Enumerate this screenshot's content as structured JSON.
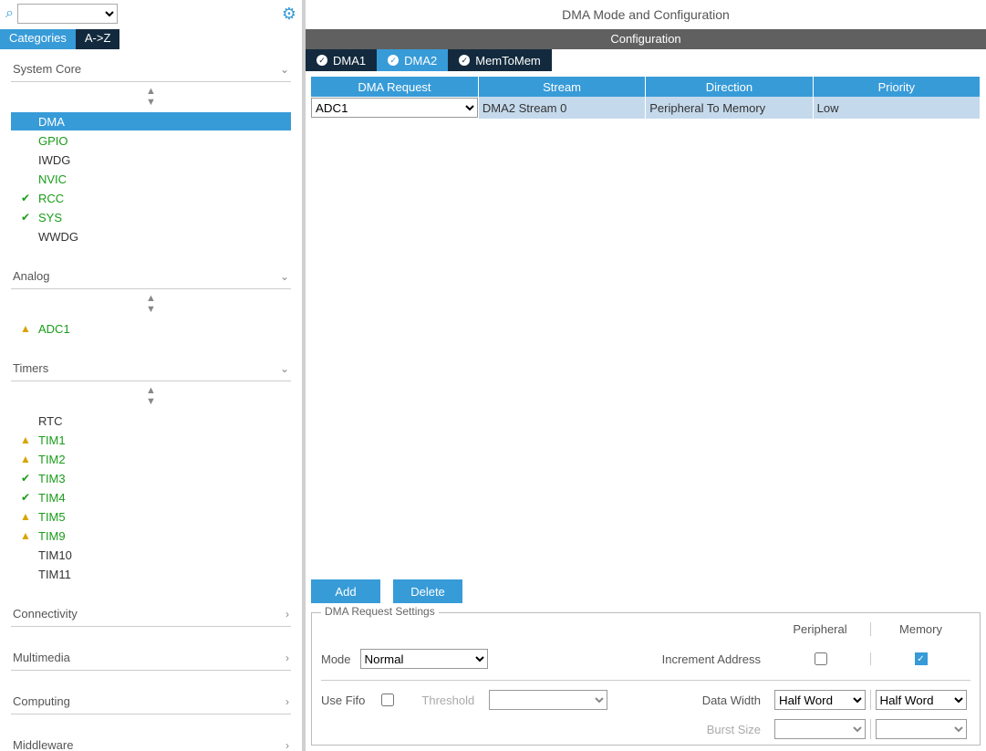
{
  "colors": {
    "accent": "#379bd8",
    "dark_tab": "#132a3e",
    "config_bar": "#606060",
    "row_bg": "#c5d9ec",
    "warn": "#d9a400",
    "ok": "#1a9c1a"
  },
  "left": {
    "tab_categories": "Categories",
    "tab_az": "A->Z",
    "sections": {
      "system_core": {
        "title": "System Core",
        "items": [
          {
            "label": "DMA",
            "color": "white",
            "badge": null,
            "selected": true
          },
          {
            "label": "GPIO",
            "color": "green",
            "badge": null
          },
          {
            "label": "IWDG",
            "color": "black",
            "badge": null
          },
          {
            "label": "NVIC",
            "color": "green",
            "badge": null
          },
          {
            "label": "RCC",
            "color": "green",
            "badge": "check"
          },
          {
            "label": "SYS",
            "color": "green",
            "badge": "check"
          },
          {
            "label": "WWDG",
            "color": "black",
            "badge": null
          }
        ]
      },
      "analog": {
        "title": "Analog",
        "items": [
          {
            "label": "ADC1",
            "color": "green",
            "badge": "warn"
          }
        ]
      },
      "timers": {
        "title": "Timers",
        "items": [
          {
            "label": "RTC",
            "color": "black",
            "badge": null
          },
          {
            "label": "TIM1",
            "color": "green",
            "badge": "warn"
          },
          {
            "label": "TIM2",
            "color": "green",
            "badge": "warn"
          },
          {
            "label": "TIM3",
            "color": "green",
            "badge": "check"
          },
          {
            "label": "TIM4",
            "color": "green",
            "badge": "check"
          },
          {
            "label": "TIM5",
            "color": "green",
            "badge": "warn"
          },
          {
            "label": "TIM9",
            "color": "green",
            "badge": "warn"
          },
          {
            "label": "TIM10",
            "color": "black",
            "badge": null
          },
          {
            "label": "TIM11",
            "color": "black",
            "badge": null
          }
        ]
      },
      "connectivity": {
        "title": "Connectivity"
      },
      "multimedia": {
        "title": "Multimedia"
      },
      "computing": {
        "title": "Computing"
      },
      "middleware": {
        "title": "Middleware"
      }
    }
  },
  "right": {
    "title": "DMA Mode and Configuration",
    "config_bar": "Configuration",
    "tabs": [
      {
        "label": "DMA1",
        "active": false
      },
      {
        "label": "DMA2",
        "active": true
      },
      {
        "label": "MemToMem",
        "active": false
      }
    ],
    "table": {
      "headers": [
        "DMA Request",
        "Stream",
        "Direction",
        "Priority"
      ],
      "row": {
        "request": "ADC1",
        "stream": "DMA2 Stream 0",
        "direction": "Peripheral To Memory",
        "priority": "Low"
      }
    },
    "buttons": {
      "add": "Add",
      "delete": "Delete"
    },
    "settings": {
      "legend": "DMA Request Settings",
      "col_peripheral": "Peripheral",
      "col_memory": "Memory",
      "mode_label": "Mode",
      "mode_value": "Normal",
      "increment_label": "Increment Address",
      "increment_peripheral": false,
      "increment_memory": true,
      "use_fifo_label": "Use Fifo",
      "use_fifo": false,
      "threshold_label": "Threshold",
      "threshold_value": "",
      "data_width_label": "Data Width",
      "data_width_peripheral": "Half Word",
      "data_width_memory": "Half Word",
      "burst_label": "Burst Size",
      "burst_peripheral": "",
      "burst_memory": ""
    }
  }
}
